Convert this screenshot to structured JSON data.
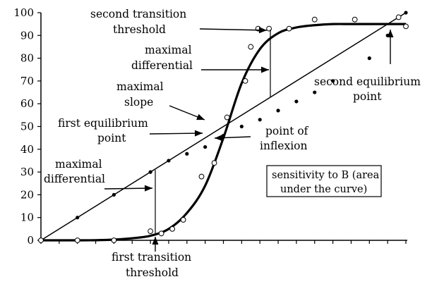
{
  "chart_data": {
    "type": "scatter",
    "ylim": [
      0,
      100
    ],
    "y_ticks": [
      "0",
      "10",
      "20",
      "30",
      "40",
      "50",
      "60",
      "70",
      "80",
      "90",
      "100"
    ],
    "x_categories": 21,
    "grid": false,
    "series": [
      {
        "kind": "line-straight",
        "points": [
          [
            0,
            0
          ],
          [
            20,
            100
          ]
        ]
      },
      {
        "kind": "line-sigmoid",
        "points": [
          [
            0,
            0
          ],
          [
            1,
            0
          ],
          [
            2,
            0
          ],
          [
            3,
            0.05
          ],
          [
            4,
            0.3
          ],
          [
            5,
            0.9
          ],
          [
            6,
            2
          ],
          [
            7,
            5
          ],
          [
            8,
            12
          ],
          [
            9,
            24
          ],
          [
            10,
            45
          ],
          [
            11,
            69
          ],
          [
            12,
            84
          ],
          [
            13,
            91
          ],
          [
            14,
            93.5
          ],
          [
            15,
            94.5
          ],
          [
            16,
            95
          ],
          [
            17,
            95
          ],
          [
            18,
            95
          ],
          [
            19,
            95
          ],
          [
            20,
            95
          ]
        ]
      },
      {
        "kind": "filled-points",
        "points": [
          [
            0,
            0
          ],
          [
            2,
            10
          ],
          [
            4,
            20
          ],
          [
            6,
            30
          ],
          [
            7,
            35
          ],
          [
            8,
            38
          ],
          [
            9,
            41
          ],
          [
            10,
            46
          ],
          [
            11,
            50
          ],
          [
            12,
            53
          ],
          [
            13,
            57
          ],
          [
            14,
            61
          ],
          [
            15,
            65
          ],
          [
            16,
            70
          ],
          [
            18,
            80
          ],
          [
            19,
            90
          ],
          [
            20,
            100
          ]
        ]
      },
      {
        "kind": "open-points",
        "points": [
          [
            0,
            0
          ],
          [
            2,
            0
          ],
          [
            4,
            0
          ],
          [
            6,
            4
          ],
          [
            6.6,
            3
          ],
          [
            7.2,
            5
          ],
          [
            7.8,
            9
          ],
          [
            8.8,
            28
          ],
          [
            9.5,
            34
          ],
          [
            10.2,
            54
          ],
          [
            11.2,
            70
          ],
          [
            11.5,
            85
          ],
          [
            11.9,
            93
          ],
          [
            12.5,
            93
          ],
          [
            13.6,
            93
          ],
          [
            15,
            97
          ],
          [
            17.2,
            97
          ],
          [
            19.6,
            98
          ],
          [
            20,
            94
          ]
        ]
      }
    ],
    "annotations": [
      {
        "lines": [
          "second transition",
          "threshold"
        ]
      },
      {
        "lines": [
          "maximal",
          "differential"
        ]
      },
      {
        "lines": [
          "maximal",
          "slope"
        ]
      },
      {
        "lines": [
          "first equilibrium",
          "point"
        ]
      },
      {
        "lines": [
          "point of",
          "inflexion"
        ]
      },
      {
        "lines": [
          "second equilibrium",
          "point"
        ]
      },
      {
        "lines": [
          "maximal",
          "differential"
        ]
      },
      {
        "lines": [
          "first transition",
          "threshold"
        ]
      }
    ],
    "legend_box": {
      "lines": [
        "sensitivity to B (area",
        "under the curve)"
      ]
    }
  }
}
